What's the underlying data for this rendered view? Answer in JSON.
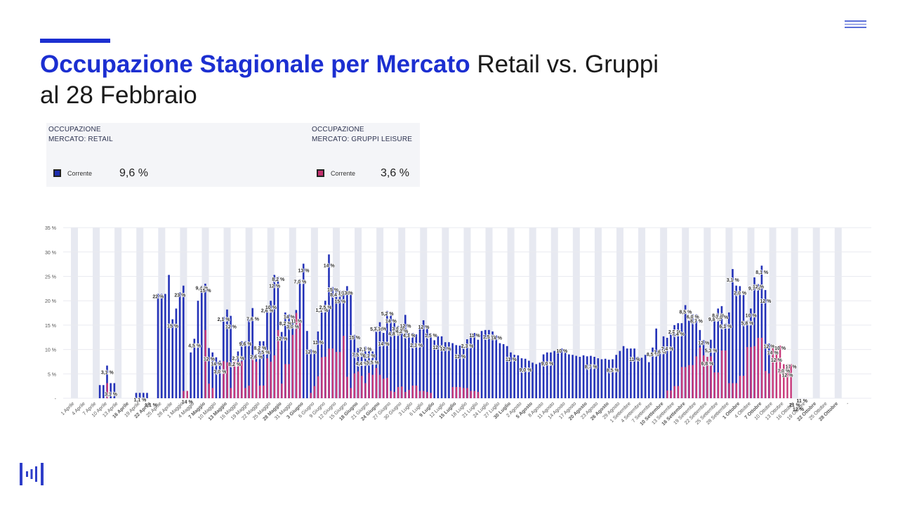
{
  "header": {
    "title_bold": "Occupazione Stagionale per Mercato",
    "title_rest": " Retail vs. Gruppi",
    "title_line2": "al 28 Febbraio"
  },
  "kpis": [
    {
      "label": "OCCUPAZIONE\nMERCATO: RETAIL",
      "legend": "Corrente",
      "value": "9,6 %",
      "color": "#1f2fb0"
    },
    {
      "label": "OCCUPAZIONE\nMERCATO: GRUPPI LEISURE",
      "legend": "Corrente",
      "value": "3,6 %",
      "color": "#c3306e"
    }
  ],
  "icons": {
    "menu": "hamburger-menu-icon",
    "logo": "brand-logo-icon"
  },
  "colors": {
    "retail": "#2432b8",
    "gruppi": "#c8387a",
    "weekend_band": "#e7e9f1",
    "accent": "#1c2fd1"
  },
  "chart_data": {
    "type": "bar",
    "y_ticks": [
      "-",
      "5 %",
      "10 %",
      "15 %",
      "20 %",
      "25 %",
      "30 %",
      "35 %"
    ],
    "ylim": [
      0,
      35
    ],
    "x_labels": [
      "1 Aprile",
      "4 Aprile",
      "7 Aprile",
      "10 Aprile",
      "13 Aprile",
      "16 Aprile",
      "19 Aprile",
      "22 Aprile",
      "25 Aprile",
      "28 Aprile",
      "1 Maggio",
      "4 Maggio",
      "7 Maggio",
      "10 Maggio",
      "13 Maggio",
      "16 Maggio",
      "19 Maggio",
      "22 Maggio",
      "25 Maggio",
      "28 Maggio",
      "31 Maggio",
      "3 Giugno",
      "6 Giugno",
      "9 Giugno",
      "12 Giugno",
      "15 Giugno",
      "18 Giugno",
      "21 Giugno",
      "24 Giugno",
      "27 Giugno",
      "30 Giugno",
      "3 Luglio",
      "6 Luglio",
      "9 Luglio",
      "12 Luglio",
      "15 Luglio",
      "18 Luglio",
      "21 Luglio",
      "24 Luglio",
      "27 Luglio",
      "30 Luglio",
      "2 Agosto",
      "5 Agosto",
      "8 Agosto",
      "11 Agosto",
      "14 Agosto",
      "17 Agosto",
      "20 Agosto",
      "23 Agosto",
      "26 Agosto",
      "29 Agosto",
      "1 Settembre",
      "4 Settembre",
      "7 Settembre",
      "10 Settembre",
      "13 Settembre",
      "16 Settembre",
      "19 Settembre",
      "22 Settembre",
      "25 Settembre",
      "28 Settembre",
      "1 Ottobre",
      "4 Ottobre",
      "7 Ottobre",
      "10 Ottobre",
      "13 Ottobre",
      "16 Ottobre",
      "19 Ottobre",
      "22 Ottobre",
      "25 Ottobre",
      "28 Ottobre",
      "-"
    ],
    "bold_labels": [
      "16 Aprile",
      "22 Aprile",
      "7 Maggio",
      "13 Maggio",
      "28 Maggio",
      "3 Giugno",
      "18 Giugno",
      "24 Giugno",
      "9 Luglio",
      "15 Luglio",
      "30 Luglio",
      "5 Agosto",
      "20 Agosto",
      "26 Agosto",
      "10 Settembre",
      "16 Settembre",
      "1 Ottobre",
      "7 Ottobre",
      "22 Ottobre",
      "28 Ottobre"
    ],
    "series": [
      {
        "name": "",
        "values": [
          0,
          0,
          0,
          0,
          0,
          0,
          0,
          0,
          2.7,
          2.7,
          6.7,
          3.1,
          3.1,
          0,
          0,
          0,
          0,
          0,
          1.1,
          1.1,
          1.1,
          1.1,
          0,
          0,
          21.4,
          21.4,
          21.4,
          25.3,
          16.2,
          18.4,
          21.7,
          23.1,
          0,
          9.4,
          12.2,
          20.0,
          23.1,
          23.5,
          10.3,
          9.4,
          8.4,
          7.7,
          16.7,
          18.2,
          16.9,
          7.1,
          9.6,
          11.7,
          11.7,
          16.2,
          18.5,
          9.0,
          11.7,
          11.7,
          18.5,
          20.0,
          25.3,
          24.9,
          13.6,
          17.6,
          17.2,
          16.1,
          18.1,
          24.4,
          27.6,
          13.8,
          10.0,
          9.4,
          13.7,
          18.6,
          20.0,
          29.5,
          22.8,
          22.6,
          22.1,
          22.1,
          23.0,
          21.5,
          13.0,
          10.3,
          9.4,
          10.6,
          10.1,
          9.6,
          14.7,
          15.6,
          13.4,
          17.9,
          17.2,
          15.5,
          14.8,
          15.1,
          17.1,
          13.4,
          13.4,
          13.1,
          15.1,
          16.0,
          14.5,
          13.4,
          11.9,
          12.7,
          12.7,
          11.5,
          11.5,
          11.3,
          10.9,
          10.8,
          10.5,
          12.1,
          13.4,
          13.4,
          12.0,
          13.8,
          14.0,
          14.0,
          13.7,
          12.9,
          11.3,
          11.1,
          10.7,
          9.4,
          8.9,
          8.8,
          8.2,
          8.1,
          7.7,
          7.3,
          7.0,
          7.3,
          9.0,
          9.4,
          9.4,
          9.7,
          9.7,
          10.2,
          10.0,
          9.0,
          8.9,
          8.7,
          8.5,
          8.8,
          8.6,
          8.7,
          8.5,
          8.2,
          8.0,
          8.1,
          7.9,
          8.0,
          8.9,
          9.7,
          10.7,
          10.2,
          10.2,
          10.2,
          8.5,
          8.3,
          8.9,
          7.4,
          10.4,
          14.3,
          10.0,
          12.7,
          12.4,
          13.2,
          15.0,
          15.4,
          15.4,
          19.1,
          15.9,
          17.2,
          17.2,
          14.0,
          11.9,
          6.8,
          12.0,
          16.7,
          18.4,
          18.9,
          15.3,
          17.6,
          26.5,
          23.1,
          23.0,
          21.2,
          15.9,
          18.4,
          24.8,
          23.4,
          27.2,
          22.2,
          11.2,
          0,
          0,
          0,
          0,
          0,
          0,
          0,
          0,
          0,
          0,
          0,
          0,
          0,
          0,
          0,
          0,
          0,
          0,
          0,
          0,
          0,
          0,
          0,
          0,
          0,
          0,
          0
        ]
      },
      {
        "name": "",
        "values": [
          0,
          0,
          0,
          0,
          0,
          0,
          0,
          0,
          0,
          0,
          3.1,
          0,
          0,
          0,
          0,
          0,
          0,
          0,
          0,
          0,
          0,
          0,
          0,
          0,
          0,
          0,
          0,
          0,
          0,
          0,
          0,
          1.5,
          1.5,
          0,
          0,
          0,
          0,
          14.0,
          3.0,
          2.1,
          0,
          0,
          7.6,
          7.4,
          2.1,
          7.5,
          7.5,
          7.6,
          2.1,
          2.6,
          8.2,
          7.5,
          2.6,
          2.6,
          8.2,
          7.5,
          8.8,
          14.0,
          3.0,
          7.0,
          7.0,
          13.0,
          17.5,
          16.0,
          0,
          0,
          1.1,
          2.5,
          4.5,
          8.4,
          8.5,
          10.2,
          10.2,
          9.5,
          9.5,
          12.8,
          4.4,
          2.1,
          5.1,
          5.5,
          4.6,
          3.1,
          5.2,
          4.8,
          6.2,
          4.8,
          4.0,
          4.2,
          1.5,
          1.3,
          2.3,
          2.4,
          1.3,
          1.7,
          2.6,
          2.6,
          1.5,
          1.5,
          1.3,
          1.1,
          0,
          0,
          0,
          0,
          0,
          2.3,
          2.3,
          2.3,
          2.1,
          2.1,
          1.5,
          1.5,
          1.3,
          0,
          0,
          0,
          0,
          0,
          0,
          0,
          0,
          0,
          0,
          0,
          0,
          0,
          0,
          0,
          0,
          0,
          0,
          0,
          0,
          0,
          0,
          0,
          0,
          0,
          0,
          0,
          0,
          0,
          0,
          0,
          0,
          0,
          0,
          0,
          0,
          0,
          0,
          0,
          0,
          0,
          0,
          0,
          0,
          0,
          0,
          0,
          0,
          0,
          0,
          0,
          1.6,
          1.6,
          2.5,
          2.5,
          6.4,
          6.4,
          6.8,
          6.8,
          8.6,
          10.4,
          8.8,
          8.5,
          8.6,
          5.3,
          5.3,
          9.8,
          9.8,
          3.1,
          3.1,
          3.1,
          4.6,
          4.6,
          10.5,
          10.5,
          10.7,
          12.4,
          12.4,
          5.6,
          5.1,
          10.7,
          10.1,
          10.8,
          7.0,
          7.0,
          7.0,
          0,
          0,
          0,
          0,
          0,
          0,
          0,
          0,
          0,
          0,
          0,
          0,
          0,
          0,
          0,
          0,
          0,
          0,
          0,
          0,
          0,
          0,
          0,
          0,
          0,
          0,
          0,
          0,
          0,
          0
        ]
      }
    ],
    "data_labels": [
      {
        "i": 10,
        "text": "3,1 %"
      },
      {
        "i": 11,
        "text": "3,1 %"
      },
      {
        "i": 19,
        "text": "1,1 %"
      },
      {
        "i": 22,
        "text": "1,1 %"
      },
      {
        "i": 24,
        "text": "22 %"
      },
      {
        "i": 28,
        "text": "15 %"
      },
      {
        "i": 30,
        "text": "23 %"
      },
      {
        "i": 32,
        "text": "14 %"
      },
      {
        "i": 34,
        "text": "4,5 %"
      },
      {
        "i": 36,
        "text": "9,4 %"
      },
      {
        "i": 37,
        "text": "15 %"
      },
      {
        "i": 38,
        "text": "12 %"
      },
      {
        "i": 40,
        "text": "14 %"
      },
      {
        "i": 41,
        "text": "3,0 %"
      },
      {
        "i": 42,
        "text": "2,1 %"
      },
      {
        "i": 44,
        "text": "12 %"
      },
      {
        "i": 45,
        "text": "8,2 %"
      },
      {
        "i": 46,
        "text": "2,7 %"
      },
      {
        "i": 48,
        "text": "9,6 %"
      },
      {
        "i": 50,
        "text": "7,6 %"
      },
      {
        "i": 51,
        "text": "2,6 %"
      },
      {
        "i": 52,
        "text": "8,2 %"
      },
      {
        "i": 53,
        "text": "7,5 %"
      },
      {
        "i": 54,
        "text": "2,6 %"
      },
      {
        "i": 55,
        "text": "10 %"
      },
      {
        "i": 56,
        "text": "12 %"
      },
      {
        "i": 57,
        "text": "8,2 %"
      },
      {
        "i": 58,
        "text": "12 %"
      },
      {
        "i": 59,
        "text": "8,2 %"
      },
      {
        "i": 60,
        "text": "14 %"
      },
      {
        "i": 61,
        "text": "3,0 %"
      },
      {
        "i": 62,
        "text": "11 %"
      },
      {
        "i": 63,
        "text": "7,0 %"
      },
      {
        "i": 64,
        "text": "13 %"
      },
      {
        "i": 66,
        "text": "12 %"
      },
      {
        "i": 68,
        "text": "11 %"
      },
      {
        "i": 69,
        "text": "1,1 %"
      },
      {
        "i": 70,
        "text": "2,5 %"
      },
      {
        "i": 71,
        "text": "14 %"
      },
      {
        "i": 72,
        "text": "15 %"
      },
      {
        "i": 73,
        "text": "8,4 %"
      },
      {
        "i": 74,
        "text": "15 %"
      },
      {
        "i": 75,
        "text": "10 %"
      },
      {
        "i": 76,
        "text": "13 %"
      },
      {
        "i": 78,
        "text": "15 %"
      },
      {
        "i": 79,
        "text": "7,5 %"
      },
      {
        "i": 80,
        "text": "4,4 %"
      },
      {
        "i": 81,
        "text": "2,1 %"
      },
      {
        "i": 82,
        "text": "6,1 %"
      },
      {
        "i": 83,
        "text": "5,5 %"
      },
      {
        "i": 84,
        "text": "5,2 %"
      },
      {
        "i": 85,
        "text": "3,1 %"
      },
      {
        "i": 86,
        "text": "14 %"
      },
      {
        "i": 87,
        "text": "5,2 %"
      },
      {
        "i": 88,
        "text": "14 %"
      },
      {
        "i": 89,
        "text": "4,8 %"
      },
      {
        "i": 90,
        "text": "3,6 %"
      },
      {
        "i": 91,
        "text": "4,2 %"
      },
      {
        "i": 92,
        "text": "12 %"
      },
      {
        "i": 93,
        "text": "4,3 %"
      },
      {
        "i": 95,
        "text": "2,3 %"
      },
      {
        "i": 97,
        "text": "12 %"
      },
      {
        "i": 99,
        "text": "1,5 %"
      },
      {
        "i": 101,
        "text": "12 %"
      },
      {
        "i": 103,
        "text": "12 %"
      },
      {
        "i": 107,
        "text": "11 %"
      },
      {
        "i": 109,
        "text": "2,3 %"
      },
      {
        "i": 111,
        "text": "11 %"
      },
      {
        "i": 115,
        "text": "1,5 %"
      },
      {
        "i": 117,
        "text": "14 %"
      },
      {
        "i": 121,
        "text": "11 %"
      },
      {
        "i": 125,
        "text": "9,0 %"
      },
      {
        "i": 131,
        "text": "9,0 %"
      },
      {
        "i": 135,
        "text": "10 %"
      },
      {
        "i": 143,
        "text": "8,7 %"
      },
      {
        "i": 149,
        "text": "8,5 %"
      },
      {
        "i": 155,
        "text": "11 %"
      },
      {
        "i": 160,
        "text": "8,5 %"
      },
      {
        "i": 162,
        "text": "1,6 %"
      },
      {
        "i": 164,
        "text": "7,4 %"
      },
      {
        "i": 166,
        "text": "2,5 %"
      },
      {
        "i": 167,
        "text": "7,4 %"
      },
      {
        "i": 169,
        "text": "8,5 %"
      },
      {
        "i": 171,
        "text": "6,0 %"
      },
      {
        "i": 172,
        "text": "8,7 %"
      },
      {
        "i": 174,
        "text": "12 %"
      },
      {
        "i": 175,
        "text": "6,8 %"
      },
      {
        "i": 176,
        "text": "5,3 %"
      },
      {
        "i": 177,
        "text": "9,8 %"
      },
      {
        "i": 178,
        "text": "8,1 %"
      },
      {
        "i": 179,
        "text": "7,0 %"
      },
      {
        "i": 180,
        "text": "6,1 %"
      },
      {
        "i": 182,
        "text": "3,1 %"
      },
      {
        "i": 184,
        "text": "2,0 %"
      },
      {
        "i": 186,
        "text": "5,8 %"
      },
      {
        "i": 187,
        "text": "10 %"
      },
      {
        "i": 188,
        "text": "9,7 %"
      },
      {
        "i": 189,
        "text": "12 %"
      },
      {
        "i": 190,
        "text": "8,1 %"
      },
      {
        "i": 191,
        "text": "12 %"
      },
      {
        "i": 192,
        "text": "12 %"
      },
      {
        "i": 193,
        "text": "14 %"
      },
      {
        "i": 194,
        "text": "12 %"
      },
      {
        "i": 195,
        "text": "10 %"
      },
      {
        "i": 196,
        "text": "7,0 %"
      },
      {
        "i": 197,
        "text": "12 %"
      },
      {
        "i": 198,
        "text": "17 %"
      },
      {
        "i": 199,
        "text": "21 %"
      },
      {
        "i": 200,
        "text": "12 %"
      },
      {
        "i": 201,
        "text": "11 %"
      }
    ]
  }
}
